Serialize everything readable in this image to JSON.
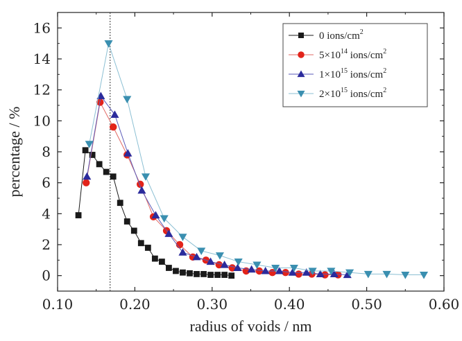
{
  "chart_data": {
    "type": "scatter",
    "xlabel": "radius of voids / nm",
    "ylabel": "percentage / %",
    "xlim": [
      0.1,
      0.6
    ],
    "ylim": [
      -1,
      17
    ],
    "xticks": [
      "0.10",
      "0.20",
      "0.30",
      "0.40",
      "0.50",
      "0.60"
    ],
    "xtick_values": [
      0.1,
      0.2,
      0.3,
      0.4,
      0.5,
      0.6
    ],
    "yticks": [
      "0",
      "2",
      "4",
      "6",
      "8",
      "10",
      "12",
      "14",
      "16"
    ],
    "ytick_values": [
      0,
      2,
      4,
      6,
      8,
      10,
      12,
      14,
      16
    ],
    "grid": false,
    "legend_position": "top-right",
    "reference_line_x": 0.168,
    "series": [
      {
        "name": "0 ions/cm2",
        "legend_main": "0 ions/cm",
        "legend_sup": "2",
        "legend_tail": "",
        "marker": "square",
        "color": "#1a1a1a",
        "line_color": "#1a1a1a",
        "x": [
          0.127,
          0.136,
          0.145,
          0.154,
          0.163,
          0.172,
          0.181,
          0.19,
          0.199,
          0.208,
          0.217,
          0.226,
          0.235,
          0.244,
          0.253,
          0.262,
          0.271,
          0.28,
          0.289,
          0.298,
          0.307,
          0.316,
          0.325
        ],
        "y": [
          3.9,
          8.1,
          7.8,
          7.2,
          6.7,
          6.4,
          4.7,
          3.5,
          2.9,
          2.1,
          1.8,
          1.1,
          0.9,
          0.5,
          0.3,
          0.2,
          0.15,
          0.1,
          0.1,
          0.05,
          0.05,
          0.05,
          0.0
        ]
      },
      {
        "name": "5×10^14 ions/cm2",
        "legend_main": "5×10",
        "legend_sup": "14",
        "legend_tail": " ions/cm",
        "legend_sup2": "2",
        "marker": "circle",
        "color": "#e2231a",
        "line_color": "#e26a66",
        "x": [
          0.137,
          0.155,
          0.172,
          0.19,
          0.207,
          0.224,
          0.241,
          0.258,
          0.275,
          0.292,
          0.309,
          0.326,
          0.344,
          0.361,
          0.378,
          0.395,
          0.412,
          0.429,
          0.446,
          0.463
        ],
        "y": [
          6.0,
          11.2,
          9.6,
          7.8,
          5.9,
          3.8,
          2.9,
          2.0,
          1.2,
          1.0,
          0.7,
          0.5,
          0.3,
          0.3,
          0.2,
          0.2,
          0.1,
          0.1,
          0.05,
          0.05
        ]
      },
      {
        "name": "1×10^15 ions/cm2",
        "legend_main": "1×10",
        "legend_sup": "15",
        "legend_tail": " ions/cm",
        "legend_sup2": "2",
        "marker": "triangle-up",
        "color": "#2b2b9c",
        "line_color": "#5a5ab8",
        "x": [
          0.138,
          0.156,
          0.174,
          0.191,
          0.209,
          0.227,
          0.244,
          0.262,
          0.28,
          0.298,
          0.316,
          0.333,
          0.351,
          0.369,
          0.387,
          0.404,
          0.422,
          0.44,
          0.458,
          0.475
        ],
        "y": [
          6.4,
          11.6,
          10.4,
          7.9,
          5.5,
          3.9,
          2.7,
          1.5,
          1.2,
          0.9,
          0.7,
          0.5,
          0.4,
          0.3,
          0.3,
          0.2,
          0.2,
          0.1,
          0.1,
          0.05
        ]
      },
      {
        "name": "2×10^15 ions/cm2",
        "legend_main": "2×10",
        "legend_sup": "15",
        "legend_tail": " ions/cm",
        "legend_sup2": "2",
        "marker": "triangle-down",
        "color": "#3a8fb0",
        "line_color": "#8bbfd3",
        "x": [
          0.141,
          0.166,
          0.19,
          0.214,
          0.238,
          0.262,
          0.286,
          0.31,
          0.334,
          0.358,
          0.382,
          0.406,
          0.43,
          0.454,
          0.478,
          0.502,
          0.526,
          0.55,
          0.574
        ],
        "y": [
          8.5,
          15.0,
          11.4,
          6.4,
          3.7,
          2.5,
          1.6,
          1.3,
          0.9,
          0.7,
          0.5,
          0.5,
          0.3,
          0.3,
          0.2,
          0.1,
          0.1,
          0.05,
          0.05
        ]
      }
    ]
  }
}
